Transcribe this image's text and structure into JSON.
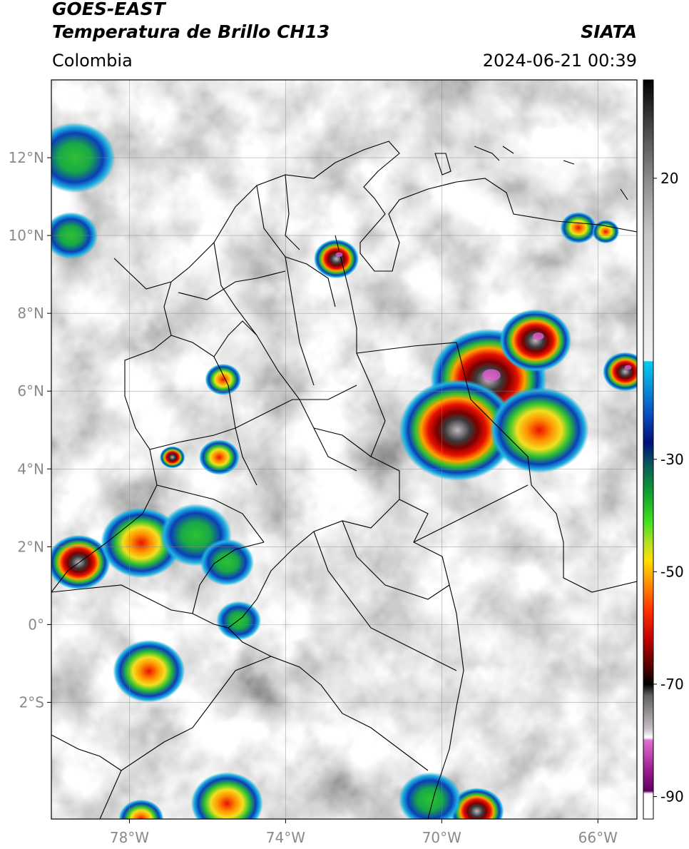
{
  "header": {
    "satellite": "GOES-EAST",
    "product": "Temperatura de Brillo CH13",
    "brand": "SIATA",
    "region": "Colombia",
    "timestamp": "2024-06-21 00:39"
  },
  "map": {
    "lon_range": [
      -80.0,
      -65.0
    ],
    "lat_range": [
      -5.0,
      14.0
    ],
    "lat_ticks": [
      {
        "value": 12,
        "label": "12°N"
      },
      {
        "value": 10,
        "label": "10°N"
      },
      {
        "value": 8,
        "label": "8°N"
      },
      {
        "value": 6,
        "label": "6°N"
      },
      {
        "value": 4,
        "label": "4°N"
      },
      {
        "value": 2,
        "label": "2°N"
      },
      {
        "value": 0,
        "label": "0°"
      },
      {
        "value": -2,
        "label": "2°S"
      }
    ],
    "lon_ticks": [
      {
        "value": -78,
        "label": "78°W"
      },
      {
        "value": -74,
        "label": "74°W"
      },
      {
        "value": -70,
        "label": "70°W"
      },
      {
        "value": -66,
        "label": "66°W"
      }
    ],
    "grid": true,
    "convective_cells": [
      {
        "lon": -72.7,
        "lat": 9.4,
        "r": 0.5,
        "intensity": 1.0
      },
      {
        "lon": -68.8,
        "lat": 6.3,
        "r": 1.3,
        "intensity": 1.0
      },
      {
        "lon": -67.6,
        "lat": 7.3,
        "r": 0.8,
        "intensity": 1.0
      },
      {
        "lon": -69.6,
        "lat": 5.0,
        "r": 1.3,
        "intensity": 0.85
      },
      {
        "lon": -67.5,
        "lat": 5.0,
        "r": 1.1,
        "intensity": 0.7
      },
      {
        "lon": -65.3,
        "lat": 6.5,
        "r": 0.5,
        "intensity": 1.0
      },
      {
        "lon": -79.3,
        "lat": 1.6,
        "r": 0.7,
        "intensity": 0.9
      },
      {
        "lon": -77.7,
        "lat": 2.1,
        "r": 0.9,
        "intensity": 0.75
      },
      {
        "lon": -76.3,
        "lat": 2.3,
        "r": 0.8,
        "intensity": 0.45
      },
      {
        "lon": -75.7,
        "lat": 4.3,
        "r": 0.45,
        "intensity": 0.7
      },
      {
        "lon": -76.9,
        "lat": 4.3,
        "r": 0.28,
        "intensity": 0.9
      },
      {
        "lon": -75.5,
        "lat": 1.6,
        "r": 0.6,
        "intensity": 0.45
      },
      {
        "lon": -75.2,
        "lat": 0.1,
        "r": 0.5,
        "intensity": 0.35
      },
      {
        "lon": -77.5,
        "lat": -1.2,
        "r": 0.8,
        "intensity": 0.5
      },
      {
        "lon": -75.5,
        "lat": -4.6,
        "r": 0.8,
        "intensity": 0.55
      },
      {
        "lon": -77.7,
        "lat": -5.0,
        "r": 0.5,
        "intensity": 0.5
      },
      {
        "lon": -69.1,
        "lat": -4.8,
        "r": 0.6,
        "intensity": 0.8
      },
      {
        "lon": -70.3,
        "lat": -4.5,
        "r": 0.7,
        "intensity": 0.35
      },
      {
        "lon": -79.4,
        "lat": 12.0,
        "r": 0.9,
        "intensity": 0.4
      },
      {
        "lon": -79.5,
        "lat": 10.0,
        "r": 0.6,
        "intensity": 0.35
      },
      {
        "lon": -75.6,
        "lat": 6.3,
        "r": 0.4,
        "intensity": 0.5
      },
      {
        "lon": -66.5,
        "lat": 10.2,
        "r": 0.4,
        "intensity": 0.5
      },
      {
        "lon": -65.8,
        "lat": 10.1,
        "r": 0.3,
        "intensity": 0.5
      }
    ]
  },
  "colorbar": {
    "ticks": [
      {
        "value": 20,
        "label": "20"
      },
      {
        "value": -30,
        "label": "-30"
      },
      {
        "value": -50,
        "label": "-50"
      },
      {
        "value": -70,
        "label": "-70"
      },
      {
        "value": -90,
        "label": "-90"
      }
    ]
  }
}
